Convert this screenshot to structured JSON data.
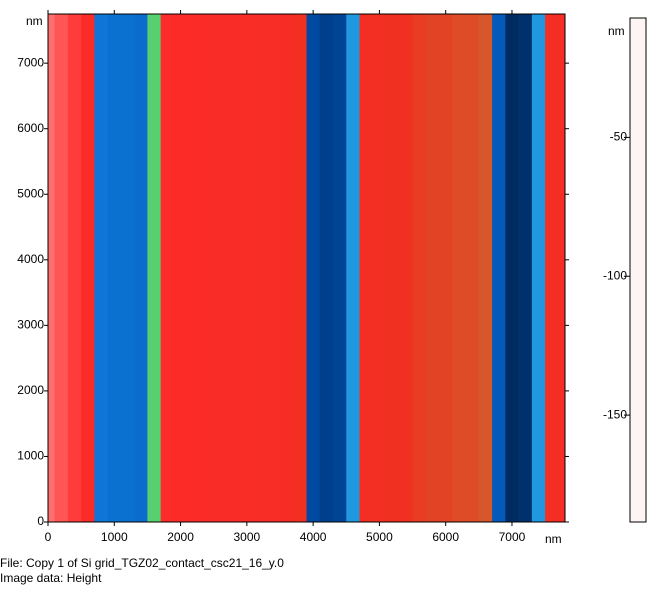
{
  "chart_data": {
    "type": "image-profile",
    "x_unit": "nm",
    "y_unit": "nm",
    "colorbar_unit": "nm",
    "file_label": "File: Copy 1 of Si grid_TGZ02_contact_csc21_16_y.0",
    "image_data_label": "Image data: Height",
    "x": [
      0,
      200,
      400,
      600,
      800,
      1000,
      1200,
      1400,
      1600,
      1800,
      2000,
      2200,
      2400,
      2600,
      2800,
      3000,
      3200,
      3400,
      3600,
      3800,
      4000,
      4200,
      4400,
      4600,
      4800,
      5000,
      5200,
      5400,
      5600,
      5800,
      6000,
      6200,
      6400,
      6600,
      6800,
      7000,
      7200,
      7400,
      7600,
      7800
    ],
    "values": [
      -22,
      -25,
      -28,
      -35,
      -135,
      -138,
      -138,
      -140,
      -95,
      -32,
      -33,
      -34,
      -34,
      -35,
      -35,
      -36,
      -36,
      -37,
      -38,
      -42,
      -158,
      -162,
      -160,
      -120,
      -40,
      -42,
      -45,
      -45,
      -48,
      -50,
      -50,
      -52,
      -52,
      -55,
      -150,
      -170,
      -168,
      -120,
      -40,
      -38
    ],
    "xlim": [
      0,
      7800
    ],
    "ylim": [
      0,
      7750
    ],
    "xticks": [
      0,
      1000,
      2000,
      3000,
      4000,
      5000,
      6000,
      7000
    ],
    "yticks": [
      0,
      1000,
      2000,
      3000,
      4000,
      5000,
      6000,
      7000
    ],
    "clim": [
      -188.5,
      -7
    ],
    "cticks": [
      -50,
      -100,
      -150
    ],
    "colormap": [
      {
        "value": -7,
        "color": "#fff4f4"
      },
      {
        "value": -20,
        "color": "#ff8080"
      },
      {
        "value": -30,
        "color": "#ff2a2a"
      },
      {
        "value": -45,
        "color": "#f03020"
      },
      {
        "value": -60,
        "color": "#c86a30"
      },
      {
        "value": -80,
        "color": "#a0a040"
      },
      {
        "value": -100,
        "color": "#40e080"
      },
      {
        "value": -110,
        "color": "#30b0e0"
      },
      {
        "value": -130,
        "color": "#1080e0"
      },
      {
        "value": -155,
        "color": "#0050b0"
      },
      {
        "value": -188.5,
        "color": "#000000"
      }
    ]
  }
}
